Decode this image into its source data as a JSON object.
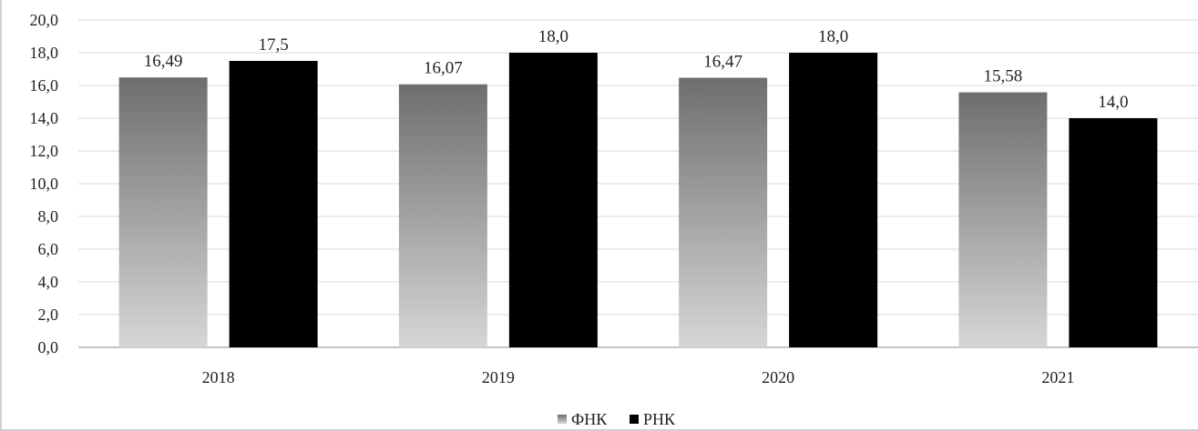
{
  "chart_data": {
    "type": "bar",
    "categories": [
      "2018",
      "2019",
      "2020",
      "2021"
    ],
    "series": [
      {
        "name": "ФНК",
        "values": [
          16.49,
          16.07,
          16.47,
          15.58
        ],
        "labels": [
          "16,49",
          "16,07",
          "16,47",
          "15,58"
        ],
        "color": "#7a7a7a"
      },
      {
        "name": "РНК",
        "values": [
          17.5,
          18.0,
          18.0,
          14.0
        ],
        "labels": [
          "17,5",
          "18,0",
          "18,0",
          "14,0"
        ],
        "color": "#000000"
      }
    ],
    "ylim": [
      0,
      20
    ],
    "yticks": [
      0,
      2,
      4,
      6,
      8,
      10,
      12,
      14,
      16,
      18,
      20
    ],
    "ytick_labels": [
      "0,0",
      "2,0",
      "4,0",
      "6,0",
      "8,0",
      "10,0",
      "12,0",
      "14,0",
      "16,0",
      "18,0",
      "20,0"
    ],
    "grid": true,
    "legend_position": "bottom",
    "title": "",
    "xlabel": "",
    "ylabel": ""
  }
}
